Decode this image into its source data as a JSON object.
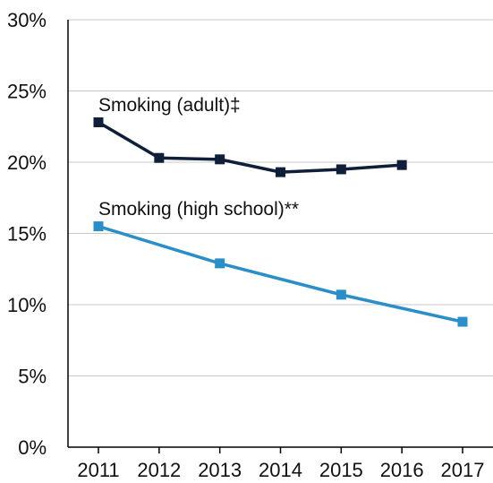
{
  "chart_data": {
    "type": "line",
    "x": [
      2011,
      2012,
      2013,
      2014,
      2015,
      2016,
      2017
    ],
    "ylim": [
      0,
      30
    ],
    "yticks": [
      "0%",
      "5%",
      "10%",
      "15%",
      "20%",
      "25%",
      "30%"
    ],
    "xticks": [
      "2011",
      "2012",
      "2013",
      "2014",
      "2015",
      "2016",
      "2017"
    ],
    "grid": true,
    "series": [
      {
        "name": "Smoking (adult)‡",
        "color": "#0f1f3a",
        "points": [
          [
            2011,
            22.8
          ],
          [
            2012,
            20.3
          ],
          [
            2013,
            20.2
          ],
          [
            2014,
            19.3
          ],
          [
            2015,
            19.5
          ],
          [
            2016,
            19.8
          ]
        ]
      },
      {
        "name": "Smoking (high school)**",
        "color": "#2a8fc8",
        "points": [
          [
            2011,
            15.5
          ],
          [
            2013,
            12.9
          ],
          [
            2015,
            10.7
          ],
          [
            2017,
            8.8
          ]
        ]
      }
    ]
  }
}
